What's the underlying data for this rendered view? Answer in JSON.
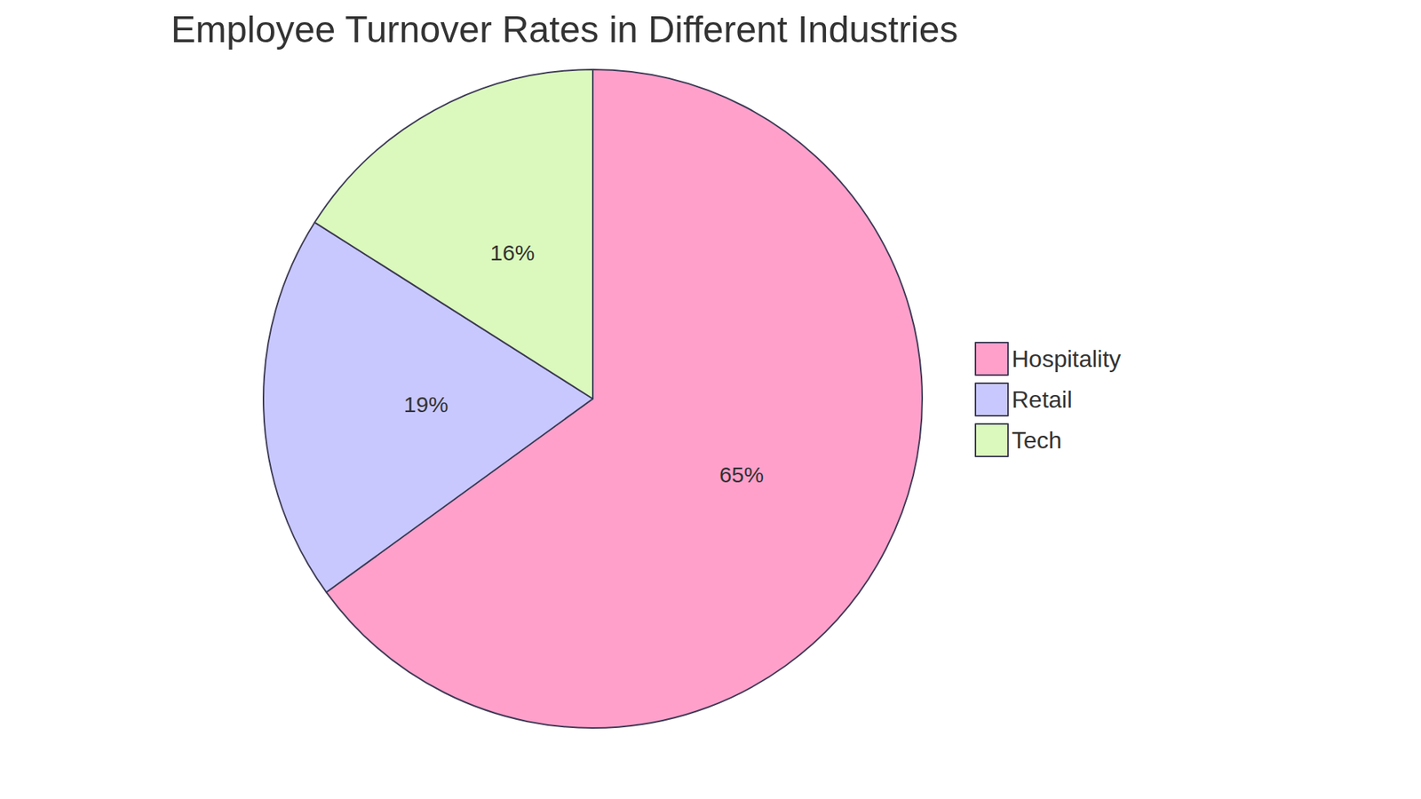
{
  "chart_data": {
    "type": "pie",
    "title": "Employee Turnover Rates in Different Industries",
    "categories": [
      "Hospitality",
      "Retail",
      "Tech"
    ],
    "values": [
      65,
      19,
      16
    ],
    "value_labels": [
      "65%",
      "19%",
      "16%"
    ],
    "colors": [
      "#ffa0cb",
      "#c8c8ff",
      "#dbf9bc"
    ],
    "data_labels": true,
    "legend": "right"
  }
}
